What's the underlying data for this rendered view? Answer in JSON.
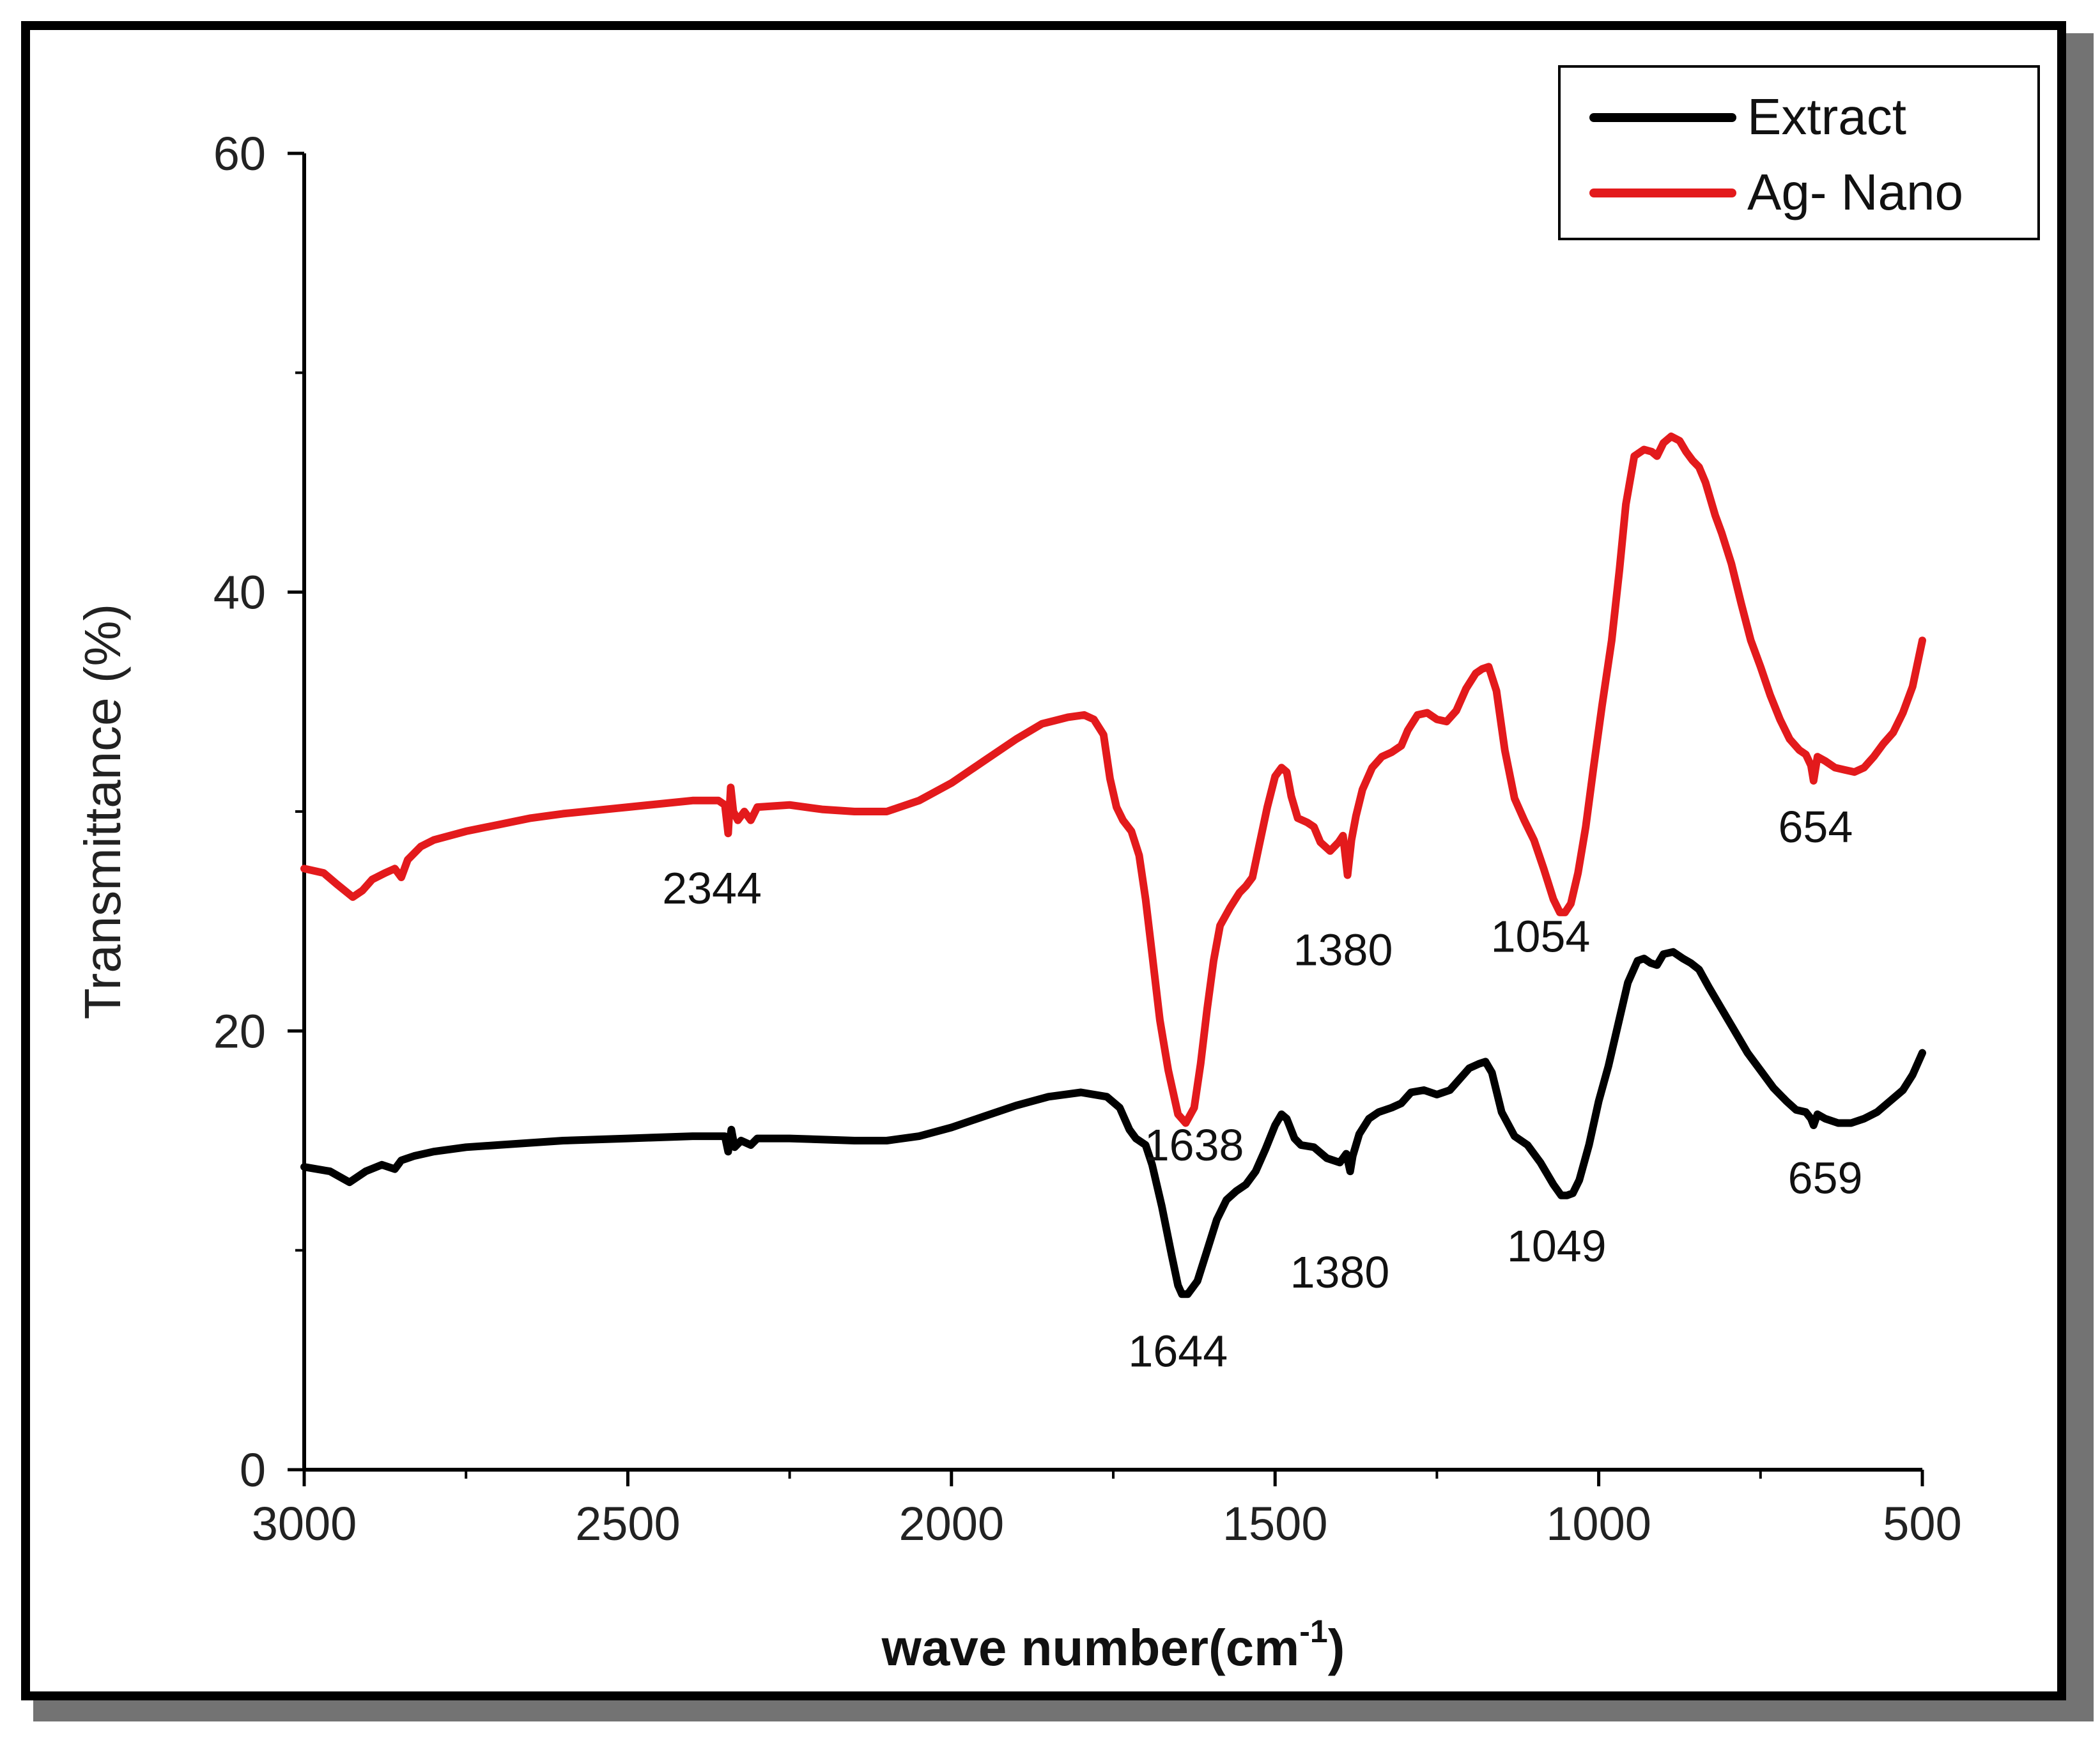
{
  "chart_data": {
    "type": "line",
    "title": "",
    "xlabel": "wave number(cm",
    "xlabel_superscript": "-1",
    "xlabel_suffix": ")",
    "ylabel": "Transmittance (%)",
    "xlim": [
      3000,
      500
    ],
    "ylim": [
      0,
      60
    ],
    "x_ticks": [
      3000,
      2500,
      2000,
      1500,
      1000,
      500
    ],
    "y_ticks": [
      0,
      20,
      40,
      60
    ],
    "grid": false,
    "legend_position": "top-right",
    "series": [
      {
        "name": "Extract",
        "color": "#000000",
        "points": [
          [
            3000,
            13.8
          ],
          [
            2960,
            13.6
          ],
          [
            2930,
            13.1
          ],
          [
            2905,
            13.6
          ],
          [
            2880,
            13.9
          ],
          [
            2860,
            13.7
          ],
          [
            2850,
            14.1
          ],
          [
            2830,
            14.3
          ],
          [
            2800,
            14.5
          ],
          [
            2750,
            14.7
          ],
          [
            2700,
            14.8
          ],
          [
            2600,
            15.0
          ],
          [
            2500,
            15.1
          ],
          [
            2400,
            15.2
          ],
          [
            2350,
            15.2
          ],
          [
            2345,
            14.5
          ],
          [
            2340,
            15.5
          ],
          [
            2335,
            14.7
          ],
          [
            2325,
            15.0
          ],
          [
            2310,
            14.8
          ],
          [
            2300,
            15.1
          ],
          [
            2250,
            15.1
          ],
          [
            2150,
            15.0
          ],
          [
            2100,
            15.0
          ],
          [
            2050,
            15.2
          ],
          [
            2000,
            15.6
          ],
          [
            1950,
            16.1
          ],
          [
            1900,
            16.6
          ],
          [
            1850,
            17.0
          ],
          [
            1800,
            17.2
          ],
          [
            1760,
            17.0
          ],
          [
            1740,
            16.5
          ],
          [
            1725,
            15.5
          ],
          [
            1715,
            15.1
          ],
          [
            1700,
            14.8
          ],
          [
            1690,
            13.9
          ],
          [
            1675,
            12.0
          ],
          [
            1660,
            9.8
          ],
          [
            1650,
            8.4
          ],
          [
            1644,
            8.0
          ],
          [
            1635,
            8.0
          ],
          [
            1620,
            8.6
          ],
          [
            1605,
            10.0
          ],
          [
            1590,
            11.4
          ],
          [
            1575,
            12.3
          ],
          [
            1560,
            12.7
          ],
          [
            1545,
            13.0
          ],
          [
            1530,
            13.6
          ],
          [
            1515,
            14.6
          ],
          [
            1500,
            15.7
          ],
          [
            1490,
            16.2
          ],
          [
            1482,
            16.0
          ],
          [
            1470,
            15.1
          ],
          [
            1460,
            14.8
          ],
          [
            1440,
            14.7
          ],
          [
            1420,
            14.2
          ],
          [
            1400,
            14.0
          ],
          [
            1390,
            14.4
          ],
          [
            1384,
            13.6
          ],
          [
            1380,
            14.3
          ],
          [
            1370,
            15.3
          ],
          [
            1355,
            16.0
          ],
          [
            1340,
            16.3
          ],
          [
            1320,
            16.5
          ],
          [
            1305,
            16.7
          ],
          [
            1290,
            17.2
          ],
          [
            1270,
            17.3
          ],
          [
            1250,
            17.1
          ],
          [
            1230,
            17.3
          ],
          [
            1215,
            17.8
          ],
          [
            1200,
            18.3
          ],
          [
            1185,
            18.5
          ],
          [
            1175,
            18.6
          ],
          [
            1165,
            18.1
          ],
          [
            1150,
            16.3
          ],
          [
            1130,
            15.2
          ],
          [
            1110,
            14.8
          ],
          [
            1090,
            14.0
          ],
          [
            1070,
            13.0
          ],
          [
            1058,
            12.5
          ],
          [
            1049,
            12.5
          ],
          [
            1040,
            12.6
          ],
          [
            1030,
            13.2
          ],
          [
            1015,
            14.8
          ],
          [
            1000,
            16.8
          ],
          [
            985,
            18.4
          ],
          [
            970,
            20.3
          ],
          [
            955,
            22.2
          ],
          [
            940,
            23.2
          ],
          [
            930,
            23.3
          ],
          [
            920,
            23.1
          ],
          [
            910,
            23.0
          ],
          [
            900,
            23.5
          ],
          [
            885,
            23.6
          ],
          [
            870,
            23.3
          ],
          [
            858,
            23.1
          ],
          [
            845,
            22.8
          ],
          [
            830,
            22.0
          ],
          [
            810,
            21.0
          ],
          [
            790,
            20.0
          ],
          [
            770,
            19.0
          ],
          [
            750,
            18.2
          ],
          [
            730,
            17.4
          ],
          [
            710,
            16.8
          ],
          [
            695,
            16.4
          ],
          [
            680,
            16.3
          ],
          [
            672,
            16.0
          ],
          [
            668,
            15.7
          ],
          [
            662,
            16.2
          ],
          [
            650,
            16.0
          ],
          [
            630,
            15.8
          ],
          [
            610,
            15.8
          ],
          [
            590,
            16.0
          ],
          [
            570,
            16.3
          ],
          [
            550,
            16.8
          ],
          [
            530,
            17.3
          ],
          [
            515,
            18.0
          ],
          [
            500,
            19.0
          ]
        ]
      },
      {
        "name": "Ag- Nano",
        "color": "#e31a1c",
        "points": [
          [
            3000,
            27.4
          ],
          [
            2970,
            27.2
          ],
          [
            2950,
            26.7
          ],
          [
            2925,
            26.1
          ],
          [
            2910,
            26.4
          ],
          [
            2895,
            26.9
          ],
          [
            2875,
            27.2
          ],
          [
            2860,
            27.4
          ],
          [
            2850,
            27.0
          ],
          [
            2840,
            27.8
          ],
          [
            2820,
            28.4
          ],
          [
            2800,
            28.7
          ],
          [
            2750,
            29.1
          ],
          [
            2700,
            29.4
          ],
          [
            2650,
            29.7
          ],
          [
            2600,
            29.9
          ],
          [
            2500,
            30.2
          ],
          [
            2400,
            30.5
          ],
          [
            2360,
            30.5
          ],
          [
            2350,
            30.3
          ],
          [
            2345,
            29.0
          ],
          [
            2341,
            31.1
          ],
          [
            2337,
            30.0
          ],
          [
            2330,
            29.6
          ],
          [
            2320,
            30.0
          ],
          [
            2310,
            29.6
          ],
          [
            2300,
            30.2
          ],
          [
            2250,
            30.3
          ],
          [
            2200,
            30.1
          ],
          [
            2150,
            30.0
          ],
          [
            2100,
            30.0
          ],
          [
            2050,
            30.5
          ],
          [
            2000,
            31.3
          ],
          [
            1950,
            32.3
          ],
          [
            1900,
            33.3
          ],
          [
            1860,
            34.0
          ],
          [
            1820,
            34.3
          ],
          [
            1795,
            34.4
          ],
          [
            1780,
            34.2
          ],
          [
            1765,
            33.5
          ],
          [
            1755,
            31.5
          ],
          [
            1745,
            30.2
          ],
          [
            1735,
            29.6
          ],
          [
            1722,
            29.1
          ],
          [
            1710,
            28.0
          ],
          [
            1700,
            26.0
          ],
          [
            1690,
            23.5
          ],
          [
            1678,
            20.5
          ],
          [
            1665,
            18.2
          ],
          [
            1650,
            16.2
          ],
          [
            1638,
            15.8
          ],
          [
            1625,
            16.5
          ],
          [
            1615,
            18.5
          ],
          [
            1605,
            21.0
          ],
          [
            1595,
            23.2
          ],
          [
            1585,
            24.8
          ],
          [
            1570,
            25.6
          ],
          [
            1555,
            26.3
          ],
          [
            1545,
            26.6
          ],
          [
            1535,
            27.0
          ],
          [
            1525,
            28.4
          ],
          [
            1512,
            30.2
          ],
          [
            1500,
            31.6
          ],
          [
            1490,
            32.0
          ],
          [
            1482,
            31.8
          ],
          [
            1475,
            30.7
          ],
          [
            1465,
            29.7
          ],
          [
            1450,
            29.5
          ],
          [
            1440,
            29.3
          ],
          [
            1430,
            28.6
          ],
          [
            1415,
            28.2
          ],
          [
            1402,
            28.6
          ],
          [
            1395,
            28.9
          ],
          [
            1388,
            27.1
          ],
          [
            1382,
            28.7
          ],
          [
            1375,
            29.8
          ],
          [
            1365,
            31.0
          ],
          [
            1350,
            32.0
          ],
          [
            1335,
            32.5
          ],
          [
            1320,
            32.7
          ],
          [
            1305,
            33.0
          ],
          [
            1295,
            33.7
          ],
          [
            1280,
            34.4
          ],
          [
            1265,
            34.5
          ],
          [
            1250,
            34.2
          ],
          [
            1235,
            34.1
          ],
          [
            1220,
            34.6
          ],
          [
            1205,
            35.6
          ],
          [
            1190,
            36.3
          ],
          [
            1180,
            36.5
          ],
          [
            1170,
            36.6
          ],
          [
            1158,
            35.5
          ],
          [
            1145,
            32.8
          ],
          [
            1130,
            30.6
          ],
          [
            1115,
            29.6
          ],
          [
            1100,
            28.7
          ],
          [
            1085,
            27.4
          ],
          [
            1070,
            26.0
          ],
          [
            1060,
            25.4
          ],
          [
            1052,
            25.4
          ],
          [
            1043,
            25.8
          ],
          [
            1032,
            27.2
          ],
          [
            1020,
            29.3
          ],
          [
            1008,
            32.0
          ],
          [
            995,
            34.8
          ],
          [
            980,
            37.8
          ],
          [
            968,
            41.0
          ],
          [
            958,
            44.0
          ],
          [
            945,
            46.2
          ],
          [
            930,
            46.5
          ],
          [
            918,
            46.4
          ],
          [
            910,
            46.2
          ],
          [
            900,
            46.8
          ],
          [
            888,
            47.1
          ],
          [
            875,
            46.9
          ],
          [
            865,
            46.4
          ],
          [
            855,
            46.0
          ],
          [
            845,
            45.7
          ],
          [
            835,
            45.0
          ],
          [
            820,
            43.5
          ],
          [
            810,
            42.7
          ],
          [
            795,
            41.3
          ],
          [
            780,
            39.5
          ],
          [
            765,
            37.8
          ],
          [
            750,
            36.6
          ],
          [
            735,
            35.3
          ],
          [
            720,
            34.2
          ],
          [
            705,
            33.3
          ],
          [
            690,
            32.8
          ],
          [
            680,
            32.6
          ],
          [
            672,
            32.1
          ],
          [
            668,
            31.4
          ],
          [
            662,
            32.5
          ],
          [
            650,
            32.3
          ],
          [
            635,
            32.0
          ],
          [
            620,
            31.9
          ],
          [
            605,
            31.8
          ],
          [
            590,
            32.0
          ],
          [
            575,
            32.5
          ],
          [
            560,
            33.1
          ],
          [
            545,
            33.6
          ],
          [
            530,
            34.5
          ],
          [
            515,
            35.7
          ],
          [
            500,
            37.8
          ]
        ]
      }
    ],
    "annotations": [
      {
        "text": "2344",
        "x": 2370,
        "y": 25.8
      },
      {
        "text": "1380",
        "x": 1395,
        "y": 23.0
      },
      {
        "text": "1054",
        "x": 1090,
        "y": 23.6
      },
      {
        "text": "654",
        "x": 665,
        "y": 28.6
      },
      {
        "text": "1638",
        "x": 1625,
        "y": 14.1
      },
      {
        "text": "1644",
        "x": 1650,
        "y": 4.7
      },
      {
        "text": "1380",
        "x": 1400,
        "y": 8.3
      },
      {
        "text": "1049",
        "x": 1065,
        "y": 9.5
      },
      {
        "text": "659",
        "x": 650,
        "y": 12.6
      }
    ]
  }
}
